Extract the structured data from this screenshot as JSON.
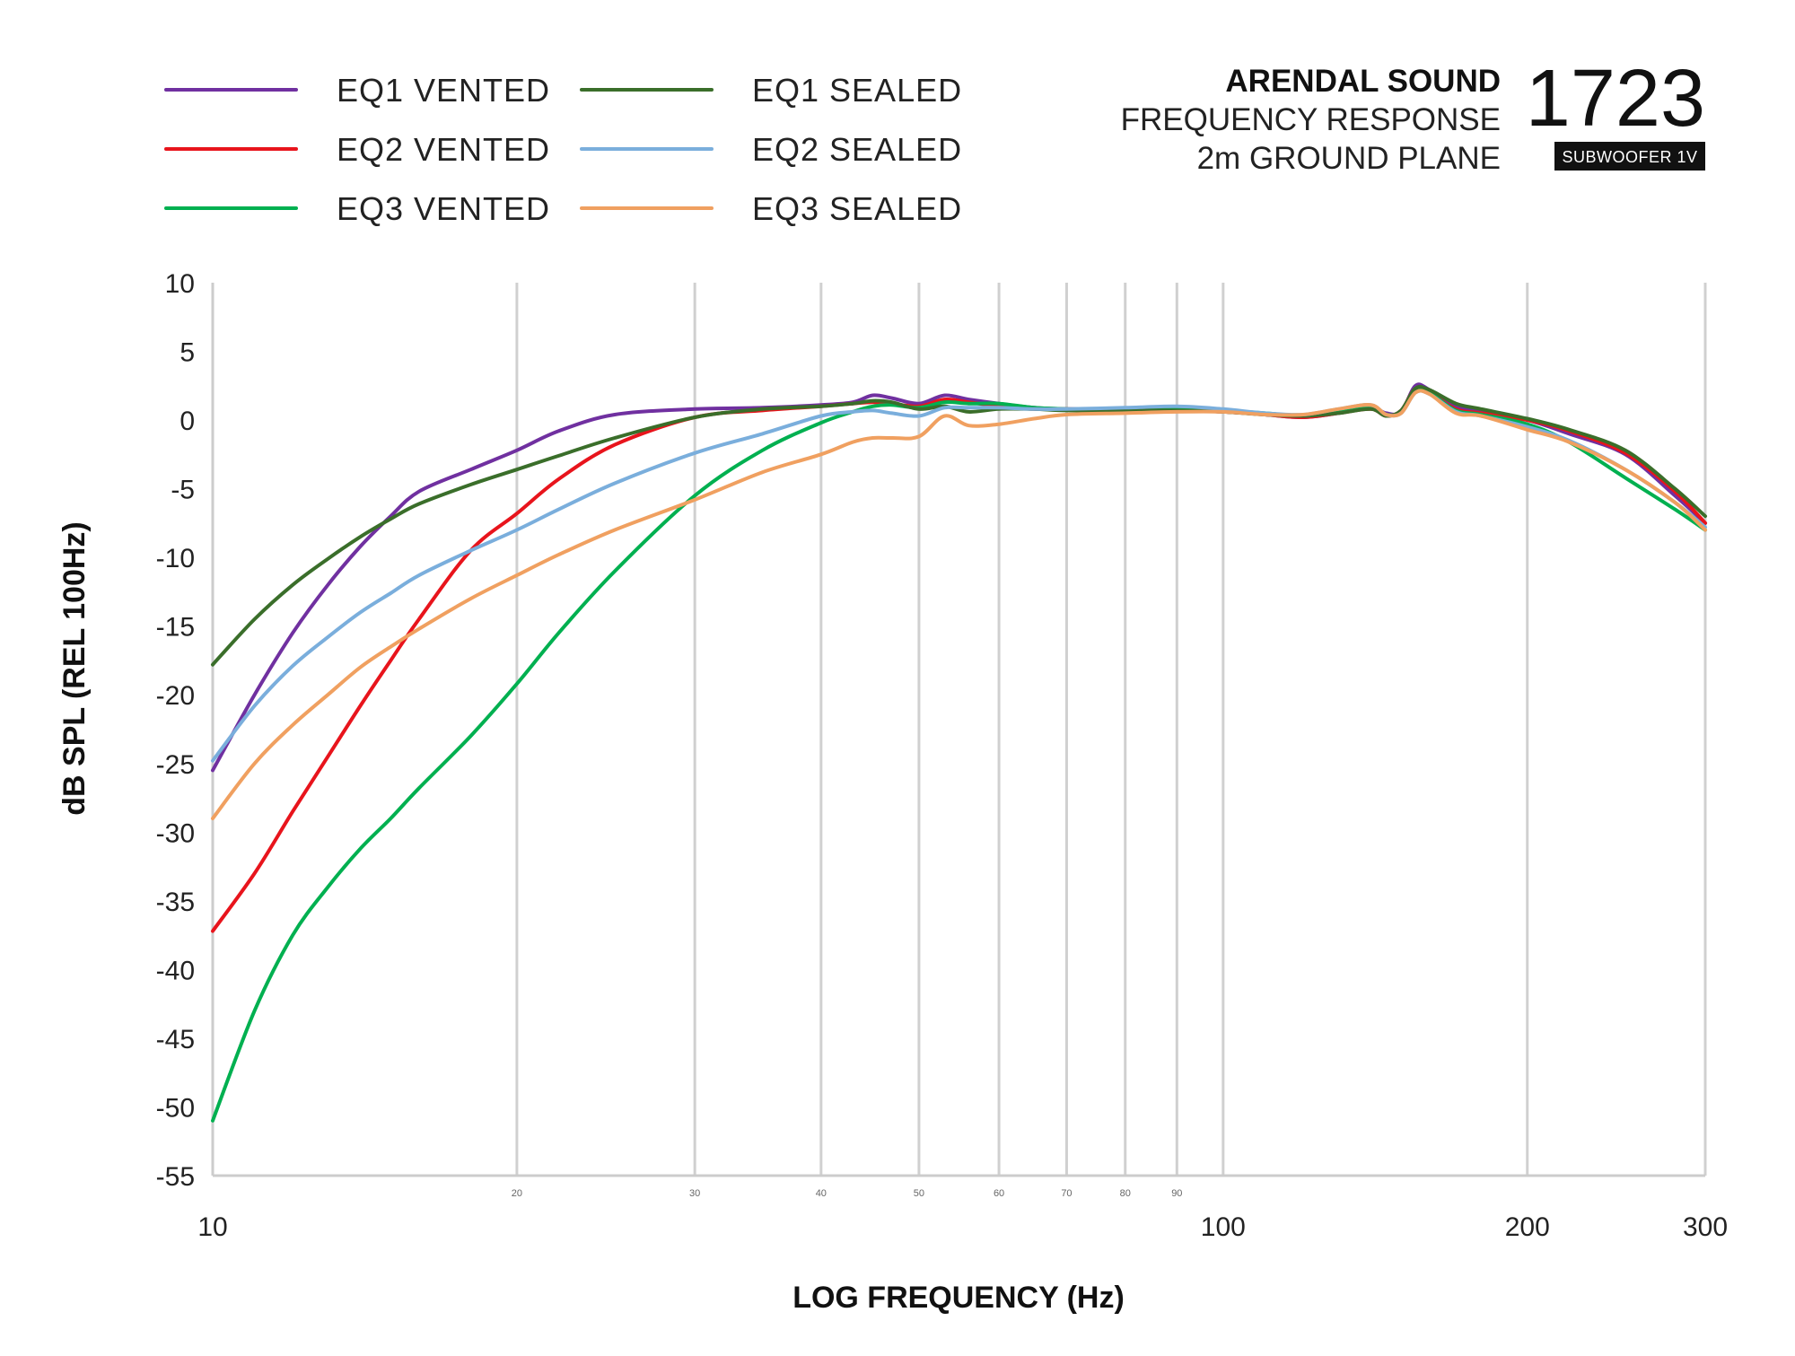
{
  "header": {
    "brand": "ARENDAL SOUND",
    "subtitle_line1": "FREQUENCY RESPONSE",
    "subtitle_line2": "2m GROUND PLANE",
    "product_number": "1723",
    "product_model": "SUBWOOFER 1V"
  },
  "chart_data": {
    "type": "line",
    "title": "FREQUENCY RESPONSE",
    "xlabel": "LOG FREQUENCY (Hz)",
    "ylabel": "dB SPL (REL 100Hz)",
    "x_scale": "log",
    "xlim": [
      10,
      300
    ],
    "ylim": [
      -55,
      10
    ],
    "grid": "vertical",
    "legend_position": "top-left",
    "y_ticks": [
      10,
      5,
      0,
      -5,
      -10,
      -15,
      -20,
      -25,
      -30,
      -35,
      -40,
      -45,
      -50,
      -55
    ],
    "x_ticks_major": [
      10,
      100,
      200,
      300
    ],
    "x_ticks_major_labels": [
      "10",
      "100",
      "200",
      "300"
    ],
    "x_ticks_minor": [
      20,
      30,
      40,
      50,
      60,
      70,
      80,
      90
    ],
    "x_ticks_minor_labels": [
      "20",
      "30",
      "40",
      "50",
      "60",
      "70",
      "80",
      "90"
    ],
    "series": [
      {
        "name": "EQ1 VENTED",
        "color": "#7030a0",
        "x": [
          10,
          11,
          12,
          13,
          14,
          15,
          16,
          18,
          20,
          22,
          25,
          30,
          35,
          40,
          43,
          45,
          47,
          50,
          53,
          56,
          60,
          65,
          70,
          80,
          90,
          100,
          110,
          120,
          130,
          140,
          145,
          150,
          155,
          160,
          170,
          180,
          200,
          220,
          250,
          280,
          300
        ],
        "y": [
          -25.5,
          -20,
          -15.5,
          -12,
          -9.2,
          -7,
          -5.2,
          -3.6,
          -2.2,
          -0.8,
          0.4,
          0.8,
          0.9,
          1.1,
          1.3,
          1.8,
          1.6,
          1.2,
          1.8,
          1.5,
          1.2,
          0.9,
          0.8,
          0.8,
          0.7,
          0.6,
          0.4,
          0.2,
          0.5,
          0.9,
          0.5,
          0.6,
          2.5,
          2.2,
          1.0,
          0.6,
          0.0,
          -1.0,
          -2.5,
          -5.5,
          -7.5
        ]
      },
      {
        "name": "EQ2 VENTED",
        "color": "#e8141c",
        "x": [
          10,
          11,
          12,
          13,
          14,
          15,
          16,
          18,
          20,
          22,
          25,
          30,
          35,
          40,
          43,
          45,
          47,
          50,
          53,
          56,
          60,
          65,
          70,
          80,
          90,
          100,
          110,
          120,
          130,
          140,
          145,
          150,
          155,
          160,
          170,
          180,
          200,
          220,
          250,
          280,
          300
        ],
        "y": [
          -37.2,
          -33,
          -28.5,
          -24.5,
          -20.8,
          -17.5,
          -14.5,
          -9.5,
          -6.8,
          -4.3,
          -1.8,
          0.2,
          0.7,
          1.0,
          1.2,
          1.3,
          1.2,
          1.0,
          1.5,
          1.3,
          1.0,
          0.8,
          0.8,
          0.8,
          0.7,
          0.6,
          0.4,
          0.2,
          0.5,
          0.8,
          0.3,
          0.7,
          2.3,
          2.0,
          0.8,
          0.5,
          0.0,
          -0.8,
          -2.4,
          -5.2,
          -7.5
        ]
      },
      {
        "name": "EQ3 VENTED",
        "color": "#00b050",
        "x": [
          10,
          11,
          12,
          13,
          14,
          15,
          16,
          18,
          20,
          22,
          25,
          30,
          35,
          40,
          43,
          45,
          47,
          50,
          53,
          56,
          60,
          65,
          70,
          80,
          90,
          100,
          110,
          120,
          130,
          140,
          145,
          150,
          155,
          160,
          170,
          180,
          200,
          220,
          250,
          280,
          300
        ],
        "y": [
          -51,
          -43,
          -37.5,
          -34,
          -31.2,
          -29,
          -26.8,
          -23,
          -19.2,
          -15.5,
          -11,
          -5.5,
          -2.2,
          -0.2,
          0.6,
          1.0,
          1.1,
          0.9,
          1.3,
          1.2,
          1.2,
          0.9,
          0.8,
          0.7,
          0.8,
          0.7,
          0.5,
          0.3,
          0.6,
          1.0,
          0.4,
          0.6,
          2.3,
          2.0,
          0.7,
          0.4,
          -0.3,
          -1.6,
          -4.2,
          -6.5,
          -8.0
        ]
      },
      {
        "name": "EQ1 SEALED",
        "color": "#3a6e2a",
        "x": [
          10,
          11,
          12,
          13,
          14,
          15,
          16,
          18,
          20,
          22,
          25,
          30,
          35,
          40,
          43,
          45,
          47,
          50,
          53,
          56,
          60,
          65,
          70,
          80,
          90,
          100,
          110,
          120,
          130,
          140,
          145,
          150,
          155,
          160,
          170,
          180,
          200,
          220,
          250,
          280,
          300
        ],
        "y": [
          -17.8,
          -14.5,
          -12,
          -10.1,
          -8.5,
          -7.2,
          -6.1,
          -4.7,
          -3.6,
          -2.6,
          -1.3,
          0.2,
          0.8,
          1.0,
          1.2,
          1.4,
          1.3,
          0.8,
          1.0,
          0.6,
          0.8,
          0.8,
          0.7,
          0.7,
          0.7,
          0.6,
          0.4,
          0.3,
          0.5,
          0.8,
          0.3,
          0.7,
          2.3,
          2.2,
          1.2,
          0.8,
          0.1,
          -0.7,
          -2.2,
          -5.0,
          -7.0
        ]
      },
      {
        "name": "EQ2 SEALED",
        "color": "#7aaedc",
        "x": [
          10,
          11,
          12,
          13,
          14,
          15,
          16,
          18,
          20,
          22,
          25,
          30,
          35,
          40,
          43,
          45,
          47,
          50,
          53,
          56,
          60,
          65,
          70,
          80,
          90,
          100,
          110,
          120,
          130,
          140,
          145,
          150,
          155,
          160,
          170,
          180,
          200,
          220,
          250,
          280,
          300
        ],
        "y": [
          -24.8,
          -20.8,
          -17.9,
          -15.8,
          -14,
          -12.6,
          -11.3,
          -9.5,
          -8,
          -6.5,
          -4.6,
          -2.4,
          -1.0,
          0.3,
          0.6,
          0.7,
          0.5,
          0.3,
          0.9,
          0.9,
          0.9,
          0.8,
          0.8,
          0.9,
          1.0,
          0.8,
          0.5,
          0.4,
          0.8,
          1.1,
          0.4,
          0.5,
          2.0,
          1.9,
          0.6,
          0.3,
          -0.5,
          -1.5,
          -3.6,
          -6.0,
          -7.8
        ]
      },
      {
        "name": "EQ3 SEALED",
        "color": "#f0a060",
        "x": [
          10,
          11,
          12,
          13,
          14,
          15,
          16,
          18,
          20,
          22,
          25,
          30,
          35,
          40,
          43,
          45,
          47,
          50,
          53,
          56,
          60,
          65,
          70,
          80,
          90,
          100,
          110,
          120,
          130,
          140,
          145,
          150,
          155,
          160,
          170,
          180,
          200,
          220,
          250,
          280,
          300
        ],
        "y": [
          -29,
          -25,
          -22.2,
          -20,
          -18,
          -16.5,
          -15.2,
          -13,
          -11.3,
          -9.8,
          -8,
          -5.8,
          -3.8,
          -2.5,
          -1.6,
          -1.3,
          -1.3,
          -1.2,
          0.3,
          -0.4,
          -0.3,
          0.1,
          0.4,
          0.5,
          0.6,
          0.6,
          0.4,
          0.4,
          0.8,
          1.1,
          0.4,
          0.5,
          2.0,
          1.9,
          0.5,
          0.3,
          -0.7,
          -1.6,
          -3.6,
          -6.0,
          -8.0
        ]
      }
    ]
  }
}
